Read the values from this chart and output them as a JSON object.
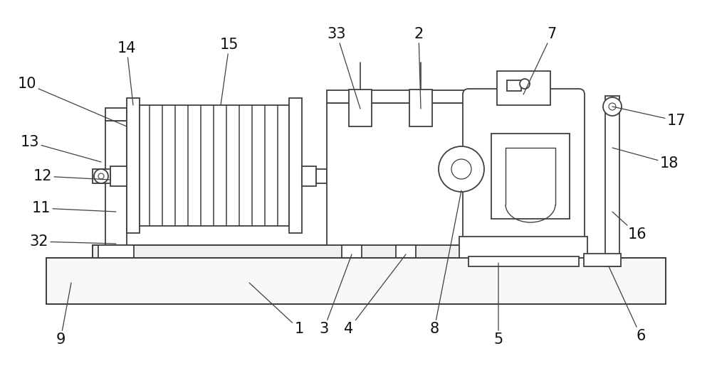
{
  "fig_width": 10.0,
  "fig_height": 5.18,
  "dpi": 100,
  "bg_color": "#ffffff",
  "line_color": "#404040",
  "line_width": 1.3
}
